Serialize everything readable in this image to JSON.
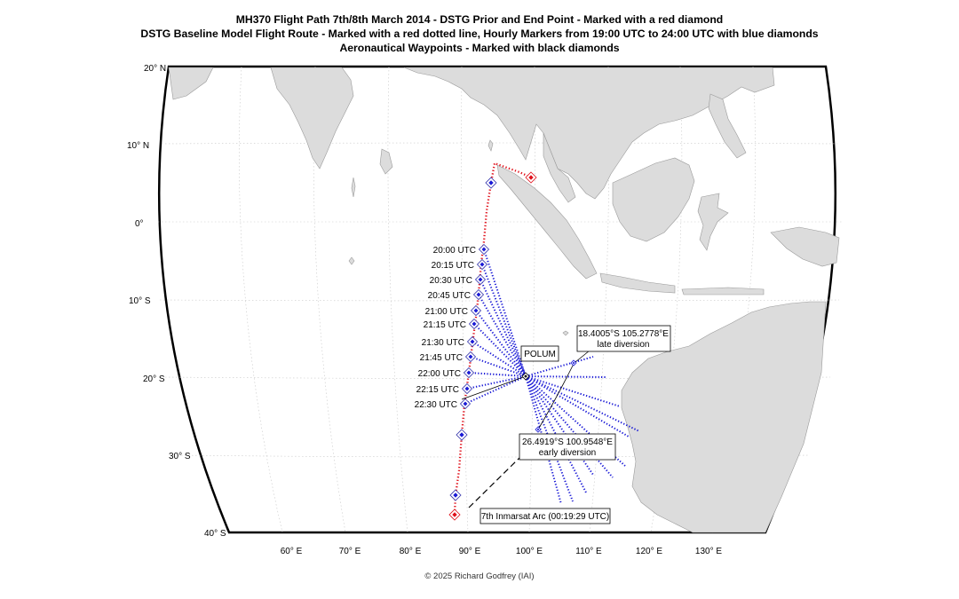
{
  "title": {
    "line1": "MH370 Flight Path 7th/8th March 2014 - DSTG Prior and End Point - Marked with a red diamond",
    "line2": "DSTG Baseline Model Flight Route - Marked with a red dotted line, Hourly Markers from 19:00 UTC to 24:00 UTC with blue diamonds",
    "line3": "Aeronautical Waypoints - Marked with black diamonds"
  },
  "lat_labels": [
    "20° N",
    "10° N",
    "0°",
    "10° S",
    "20° S",
    "30° S",
    "40° S"
  ],
  "lon_labels": [
    "60° E",
    "70° E",
    "80° E",
    "90° E",
    "100° E",
    "110° E",
    "120° E",
    "130° E"
  ],
  "utc_labels": [
    "20:00 UTC",
    "20:15 UTC",
    "20:30 UTC",
    "20:45 UTC",
    "21:00 UTC",
    "21:15 UTC",
    "21:30 UTC",
    "21:45 UTC",
    "22:00 UTC",
    "22:15 UTC",
    "22:30 UTC"
  ],
  "waypoint": "POLUM",
  "late_box": {
    "line1": "18.4005°S 105.2778°E",
    "line2": "late diversion"
  },
  "early_box": {
    "line1": "26.4919°S 100.9548°E",
    "line2": "early diversion"
  },
  "arc_label": "7th Inmarsat Arc (00:19:29 UTC)",
  "copyright": "© 2025 Richard Godfrey (IAI)",
  "colors": {
    "route": "#e0101a",
    "diversion": "#1a1ad6",
    "land": "#dcdcdc",
    "coast": "#9a9a9a"
  }
}
